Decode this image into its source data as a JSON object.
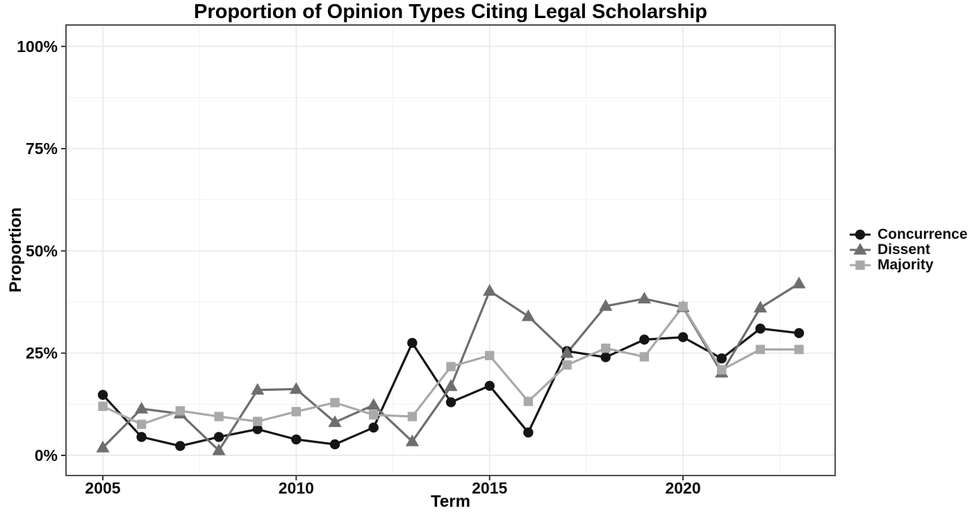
{
  "chart_data": {
    "type": "line",
    "title": "Proportion of Opinion Types Citing Legal Scholarship",
    "xlabel": "Term",
    "ylabel": "Proportion",
    "x": [
      2005,
      2006,
      2007,
      2008,
      2009,
      2010,
      2011,
      2012,
      2013,
      2014,
      2015,
      2016,
      2017,
      2018,
      2019,
      2020,
      2021,
      2022,
      2023
    ],
    "series": [
      {
        "name": "Concurrence",
        "marker": "circle",
        "color": "#151515",
        "values": [
          14.8,
          4.5,
          2.3,
          4.5,
          6.4,
          3.9,
          2.7,
          6.8,
          27.5,
          13.0,
          17.0,
          5.6,
          25.5,
          24.0,
          28.3,
          28.9,
          23.7,
          31.0,
          29.9
        ]
      },
      {
        "name": "Dissent",
        "marker": "triangle",
        "color": "#6e6e6e",
        "values": [
          1.9,
          11.4,
          10.2,
          1.2,
          16.0,
          16.2,
          8.1,
          12.3,
          3.4,
          16.9,
          40.2,
          34.0,
          25.0,
          36.5,
          38.3,
          36.2,
          20.2,
          36.1,
          42.0
        ]
      },
      {
        "name": "Majority",
        "marker": "square",
        "color": "#a9a9a9",
        "values": [
          12.0,
          7.6,
          10.9,
          9.5,
          8.3,
          10.7,
          12.9,
          9.9,
          9.5,
          21.7,
          24.4,
          13.2,
          22.1,
          26.2,
          24.1,
          36.4,
          20.9,
          25.9,
          25.9
        ]
      }
    ],
    "x_tick_values": [
      2005,
      2010,
      2015,
      2020
    ],
    "x_tick_labels": [
      "2005",
      "2010",
      "2015",
      "2020"
    ],
    "y_tick_values": [
      0,
      25,
      50,
      75,
      100
    ],
    "y_tick_labels": [
      "0%",
      "25%",
      "50%",
      "75%",
      "100%"
    ],
    "ylim": [
      0,
      100
    ],
    "xlim": [
      2005,
      2023
    ],
    "grid": "major-and-minor",
    "legend_position": "right",
    "legend_entries": [
      "Concurrence",
      "Dissent",
      "Majority"
    ]
  },
  "colors": {
    "concurrence": "#151515",
    "dissent": "#6e6e6e",
    "majority": "#a9a9a9",
    "grid_major": "#e5e5e5",
    "grid_minor": "#f1f1f1",
    "panel_border": "#4d4d4d",
    "tick": "#333333"
  }
}
